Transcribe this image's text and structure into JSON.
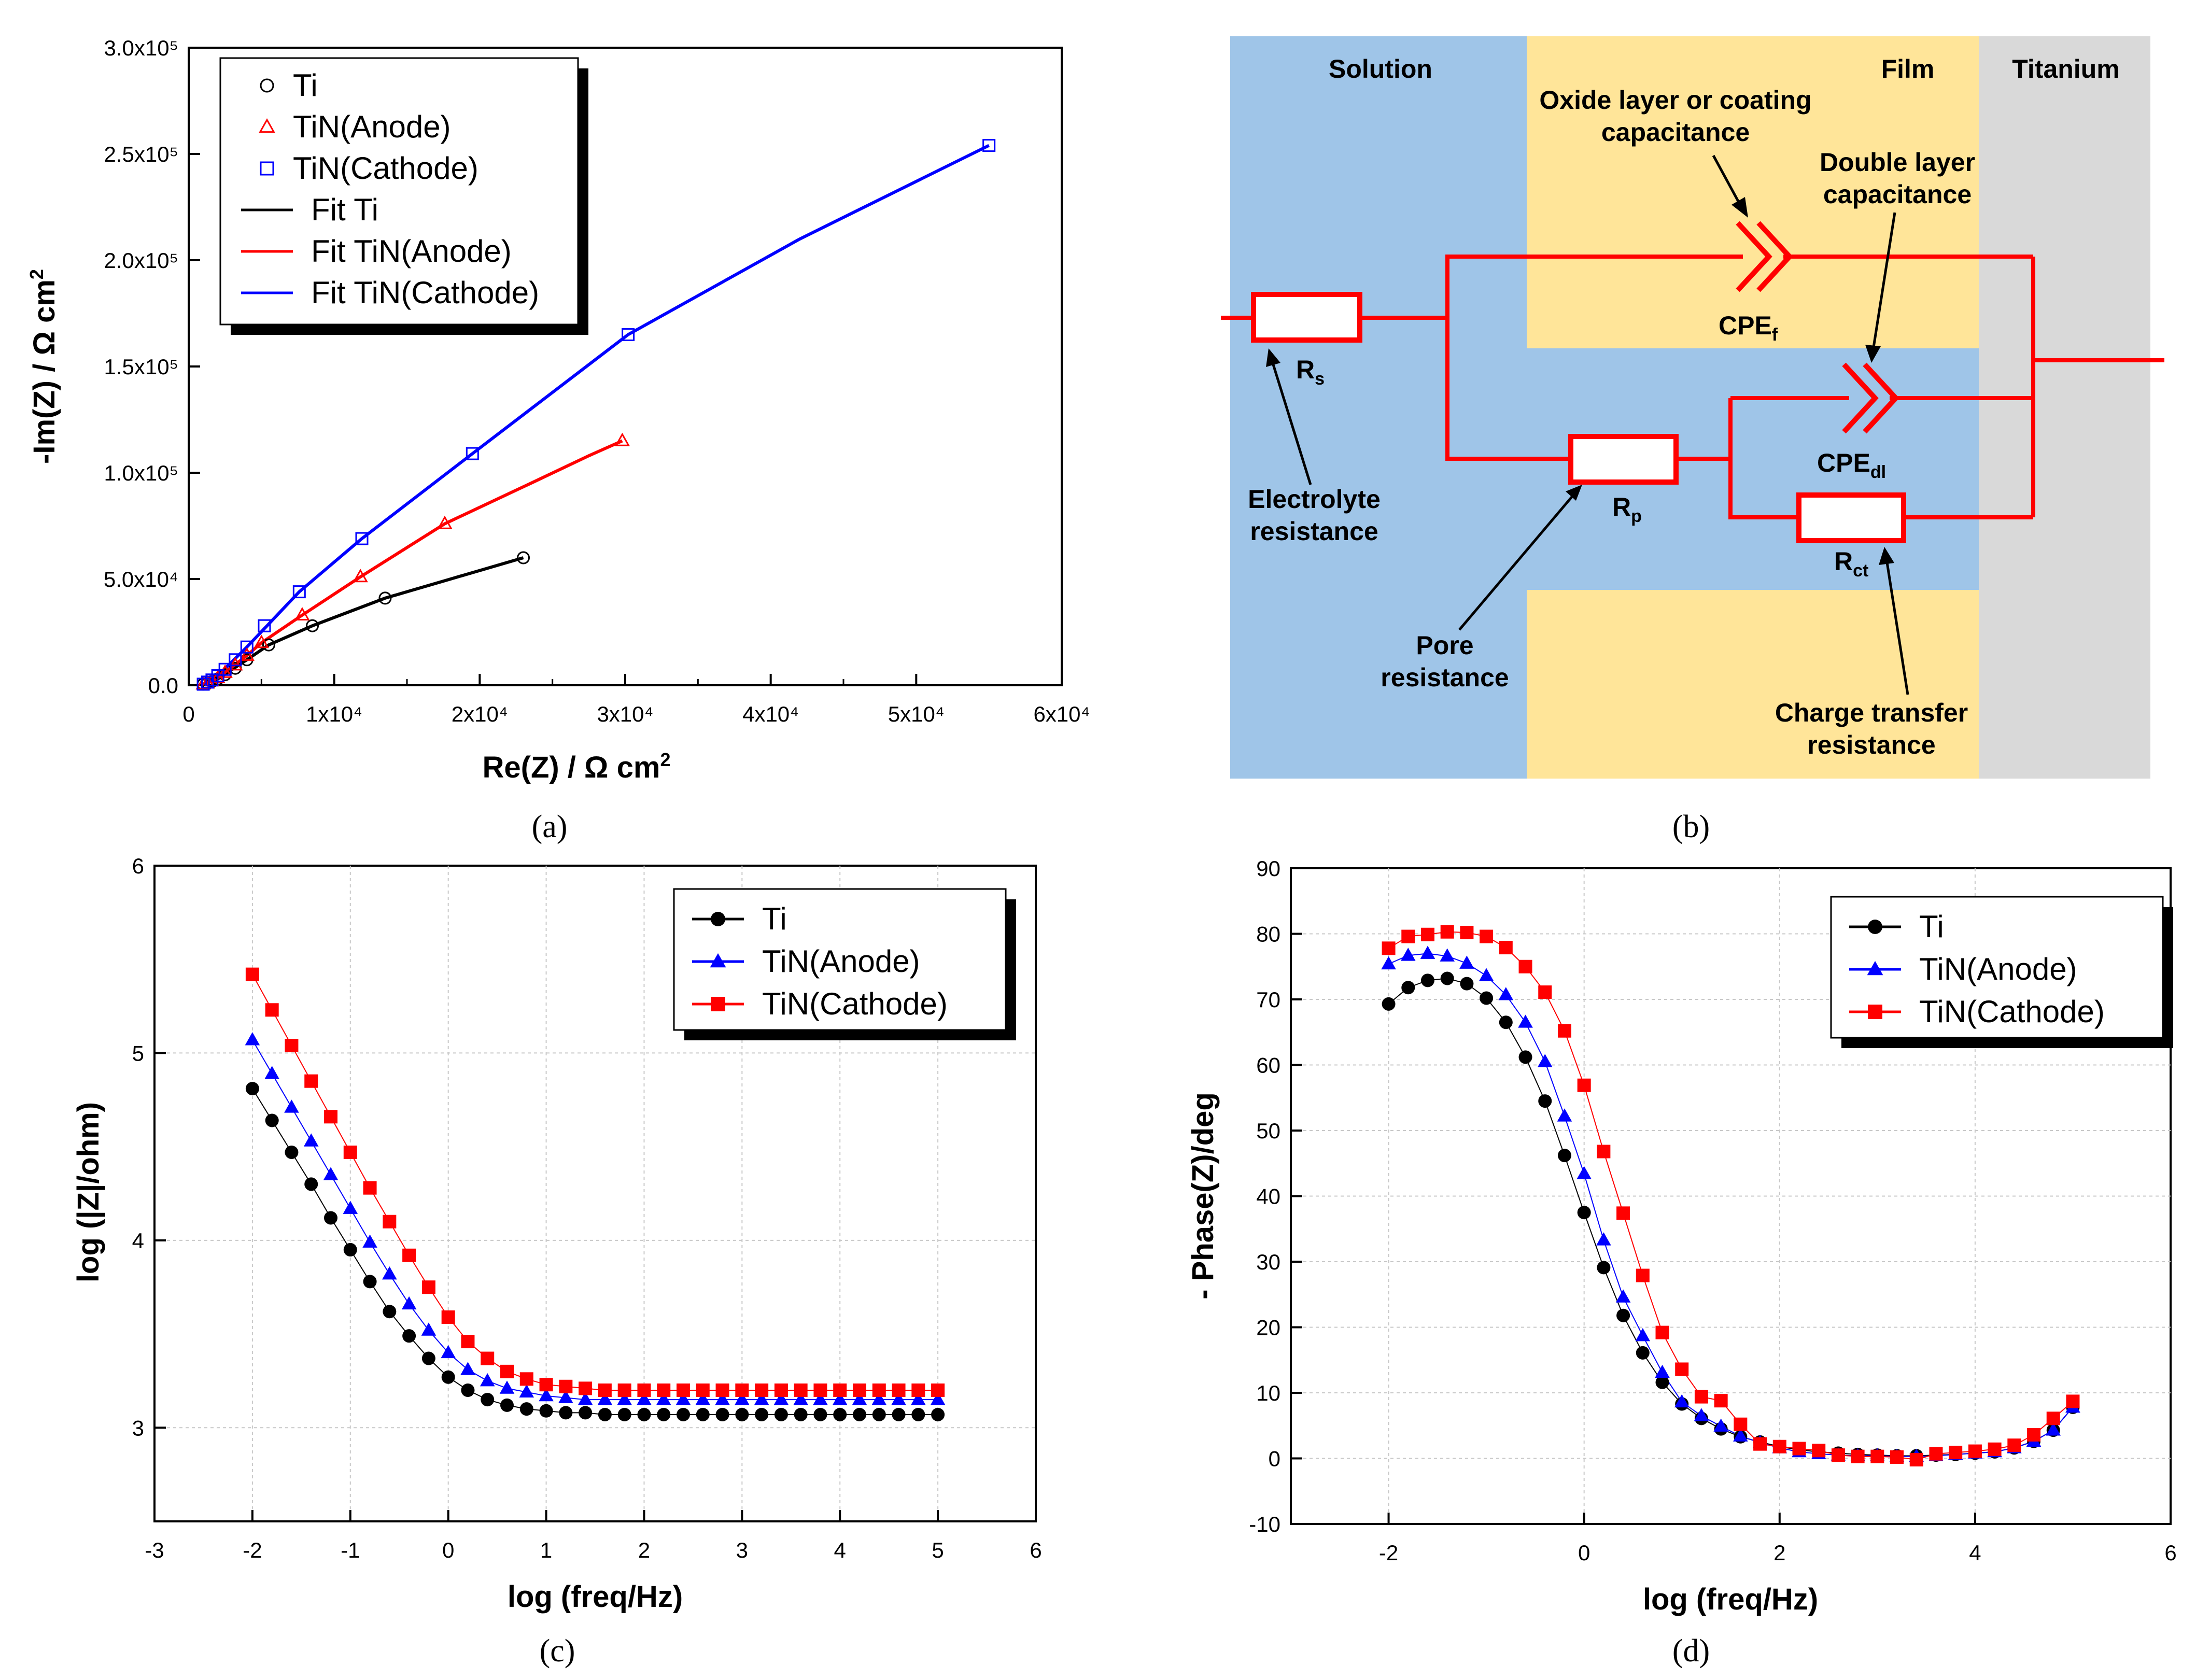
{
  "colors": {
    "ti": "#000000",
    "anode": "#ff0000",
    "cathode": "#0000ff",
    "solution": "#9fc5e8",
    "film": "#ffe599",
    "titanium": "#d9d9d9",
    "circuit": "#ff0000"
  },
  "panel_a": {
    "caption": "(a)",
    "ylabel": "-Im(Z) / Ω cm²",
    "xlabel": "Re(Z) / Ω cm²"
  },
  "panel_b": {
    "caption": "(b)",
    "regions": {
      "solution": "Solution",
      "film": "Film",
      "titanium": "Titanium"
    },
    "components": {
      "rs": "Rs",
      "rp": "Rp",
      "rct": "Rct",
      "cpef": "CPEf",
      "cpedl": "CPEdl"
    },
    "labels": {
      "oxide_line1": "Oxide layer or coating",
      "oxide_line2": "capacitance",
      "dl_line1": "Double layer",
      "dl_line2": "capacitance",
      "electrolyte_line1": "Electrolyte",
      "electrolyte_line2": "resistance",
      "pore_line1": "Pore",
      "pore_line2": "resistance",
      "charge_line1": "Charge transfer",
      "charge_line2": "resistance"
    }
  },
  "panel_c": {
    "caption": "(c)",
    "ylabel": "log (|Z|/ohm)",
    "xlabel": "log (freq/Hz)"
  },
  "panel_d": {
    "caption": "(d)",
    "ylabel": "- Phase(Z)/deg",
    "xlabel": "log (freq/Hz)"
  },
  "chart_data": [
    {
      "id": "a",
      "type": "scatter",
      "title": "",
      "xlabel": "Re(Z) / Ω cm²",
      "ylabel": "-Im(Z) / Ω cm²",
      "xlim": [
        0,
        60000
      ],
      "ylim": [
        0,
        300000
      ],
      "xticks": [
        "0",
        "1x10⁴",
        "2x10⁴",
        "3x10⁴",
        "4x10⁴",
        "5x10⁴",
        "6x10⁴"
      ],
      "yticks": [
        "0.0",
        "5.0x10⁴",
        "1.0x10⁵",
        "1.5x10⁵",
        "2.0x10⁵",
        "2.5x10⁵",
        "3.0x10⁵"
      ],
      "legend": [
        "Ti",
        "TiN(Anode)",
        "TiN(Cathode)",
        "Fit Ti",
        "Fit TiN(Anode)",
        "Fit TiN(Cathode)"
      ],
      "legend_position": "top-left",
      "series": [
        {
          "name": "Ti",
          "marker": "circle",
          "color": "#000000",
          "x": [
            1000,
            1300,
            1600,
            2000,
            2500,
            3200,
            4000,
            5500,
            8500,
            13500,
            23000
          ],
          "y": [
            500,
            1000,
            1800,
            3000,
            5000,
            8000,
            12000,
            19000,
            28000,
            41000,
            60000
          ]
        },
        {
          "name": "TiN(Anode)",
          "marker": "triangle",
          "color": "#ff0000",
          "x": [
            1000,
            1300,
            1600,
            2000,
            2500,
            3200,
            4000,
            5000,
            7800,
            11800,
            17600,
            29800
          ],
          "y": [
            500,
            1000,
            2000,
            3500,
            6000,
            9500,
            14000,
            20000,
            33000,
            51000,
            76000,
            115000
          ]
        },
        {
          "name": "TiN(Cathode)",
          "marker": "square",
          "color": "#0000ff",
          "x": [
            1000,
            1300,
            1600,
            2000,
            2500,
            3200,
            4000,
            5200,
            7600,
            11900,
            19500,
            30200,
            55000
          ],
          "y": [
            500,
            1500,
            2500,
            4500,
            7500,
            12000,
            18000,
            28000,
            44000,
            69000,
            109000,
            165000,
            254000
          ]
        },
        {
          "name": "Fit Ti",
          "line": true,
          "color": "#000000",
          "x": [
            1000,
            2000,
            4000,
            5500,
            8500,
            13500,
            18000,
            23000
          ],
          "y": [
            500,
            3000,
            12000,
            19000,
            28000,
            41000,
            50000,
            60000
          ]
        },
        {
          "name": "Fit TiN(Anode)",
          "line": true,
          "color": "#ff0000",
          "x": [
            1000,
            2000,
            4000,
            5000,
            7800,
            11800,
            17600,
            23500,
            27500,
            29800
          ],
          "y": [
            500,
            3500,
            14000,
            20000,
            33000,
            51000,
            76000,
            95000,
            108000,
            115000
          ]
        },
        {
          "name": "Fit TiN(Cathode)",
          "line": true,
          "color": "#0000ff",
          "x": [
            1000,
            2000,
            4000,
            7600,
            11900,
            19500,
            30200,
            42000,
            55000
          ],
          "y": [
            500,
            4500,
            18000,
            44000,
            69000,
            109000,
            165000,
            210000,
            254000
          ]
        }
      ]
    },
    {
      "id": "c",
      "type": "line",
      "xlabel": "log (freq/Hz)",
      "ylabel": "log (|Z|/ohm)",
      "xlim": [
        -3,
        6
      ],
      "ylim": [
        2.5,
        6
      ],
      "xticks": [
        "-3",
        "-2",
        "-1",
        "0",
        "1",
        "2",
        "3",
        "4",
        "5",
        "6"
      ],
      "yticks": [
        "3",
        "4",
        "5",
        "6"
      ],
      "legend": [
        "Ti",
        "TiN(Anode)",
        "TiN(Cathode)"
      ],
      "legend_position": "top-right",
      "x": [
        -2.0,
        -1.8,
        -1.6,
        -1.4,
        -1.2,
        -1.0,
        -0.8,
        -0.6,
        -0.4,
        -0.2,
        0.0,
        0.2,
        0.4,
        0.6,
        0.8,
        1.0,
        1.2,
        1.4,
        1.6,
        1.8,
        2.0,
        2.2,
        2.4,
        2.6,
        2.8,
        3.0,
        3.2,
        3.4,
        3.6,
        3.8,
        4.0,
        4.2,
        4.4,
        4.6,
        4.8,
        5.0
      ],
      "series": [
        {
          "name": "Ti",
          "marker": "circle",
          "color": "#000000",
          "values": [
            4.81,
            4.64,
            4.47,
            4.3,
            4.12,
            3.95,
            3.78,
            3.62,
            3.49,
            3.37,
            3.27,
            3.2,
            3.15,
            3.12,
            3.1,
            3.09,
            3.08,
            3.08,
            3.07,
            3.07,
            3.07,
            3.07,
            3.07,
            3.07,
            3.07,
            3.07,
            3.07,
            3.07,
            3.07,
            3.07,
            3.07,
            3.07,
            3.07,
            3.07,
            3.07,
            3.07
          ]
        },
        {
          "name": "TiN(Anode)",
          "marker": "triangle",
          "color": "#0000ff",
          "values": [
            5.07,
            4.89,
            4.71,
            4.53,
            4.35,
            4.17,
            3.99,
            3.82,
            3.66,
            3.52,
            3.4,
            3.31,
            3.25,
            3.21,
            3.19,
            3.17,
            3.16,
            3.15,
            3.15,
            3.15,
            3.15,
            3.15,
            3.15,
            3.15,
            3.15,
            3.15,
            3.15,
            3.15,
            3.15,
            3.15,
            3.15,
            3.15,
            3.15,
            3.15,
            3.15,
            3.15
          ]
        },
        {
          "name": "TiN(Cathode)",
          "marker": "square",
          "color": "#ff0000",
          "values": [
            5.42,
            5.23,
            5.04,
            4.85,
            4.66,
            4.47,
            4.28,
            4.1,
            3.92,
            3.75,
            3.59,
            3.46,
            3.37,
            3.3,
            3.26,
            3.23,
            3.22,
            3.21,
            3.2,
            3.2,
            3.2,
            3.2,
            3.2,
            3.2,
            3.2,
            3.2,
            3.2,
            3.2,
            3.2,
            3.2,
            3.2,
            3.2,
            3.2,
            3.2,
            3.2,
            3.2
          ]
        }
      ]
    },
    {
      "id": "d",
      "type": "line",
      "xlabel": "log (freq/Hz)",
      "ylabel": "- Phase(Z)/deg",
      "xlim": [
        -3,
        6
      ],
      "ylim": [
        -10,
        90
      ],
      "xticks": [
        "-2",
        "0",
        "2",
        "4",
        "6"
      ],
      "yticks": [
        "-10",
        "0",
        "10",
        "20",
        "30",
        "40",
        "50",
        "60",
        "70",
        "80",
        "90"
      ],
      "legend": [
        "Ti",
        "TiN(Anode)",
        "TiN(Cathode)"
      ],
      "legend_position": "top-right",
      "x": [
        -2.0,
        -1.8,
        -1.6,
        -1.4,
        -1.2,
        -1.0,
        -0.8,
        -0.6,
        -0.4,
        -0.2,
        0.0,
        0.2,
        0.4,
        0.6,
        0.8,
        1.0,
        1.2,
        1.4,
        1.6,
        1.8,
        2.0,
        2.2,
        2.4,
        2.6,
        2.8,
        3.0,
        3.2,
        3.4,
        3.6,
        3.8,
        4.0,
        4.2,
        4.4,
        4.6,
        4.8,
        5.0
      ],
      "series": [
        {
          "name": "Ti",
          "marker": "circle",
          "color": "#000000",
          "values": [
            69.3,
            71.8,
            72.9,
            73.2,
            72.4,
            70.2,
            66.5,
            61.2,
            54.5,
            46.2,
            37.5,
            29.1,
            21.8,
            16.1,
            11.6,
            8.3,
            6.1,
            4.5,
            3.3,
            2.5,
            1.8,
            1.3,
            1.0,
            0.8,
            0.6,
            0.5,
            0.4,
            0.4,
            0.5,
            0.6,
            0.8,
            1.0,
            1.6,
            2.6,
            4.3,
            7.8
          ]
        },
        {
          "name": "TiN(Anode)",
          "marker": "triangle",
          "color": "#0000ff",
          "values": [
            75.4,
            76.7,
            77.0,
            76.6,
            75.5,
            73.6,
            70.7,
            66.5,
            60.5,
            52.2,
            43.4,
            33.3,
            24.6,
            18.7,
            13.1,
            8.6,
            6.5,
            4.9,
            3.4,
            2.4,
            1.6,
            1.0,
            0.7,
            0.5,
            0.4,
            0.4,
            0.3,
            0.3,
            0.4,
            0.6,
            0.8,
            1.0,
            1.6,
            2.6,
            4.3,
            7.8
          ]
        },
        {
          "name": "TiN(Cathode)",
          "marker": "square",
          "color": "#ff0000",
          "values": [
            77.8,
            79.6,
            79.9,
            80.3,
            80.2,
            79.6,
            77.9,
            75.0,
            71.1,
            65.2,
            56.9,
            46.8,
            37.4,
            27.9,
            19.2,
            13.6,
            9.4,
            8.8,
            5.2,
            2.2,
            1.8,
            1.5,
            1.2,
            0.5,
            0.3,
            0.3,
            0.2,
            -0.2,
            0.7,
            0.9,
            1.1,
            1.4,
            2.0,
            3.6,
            6.1,
            8.7
          ]
        }
      ]
    }
  ]
}
